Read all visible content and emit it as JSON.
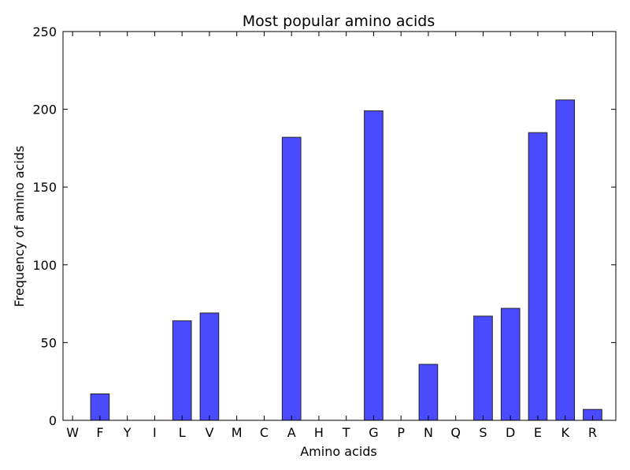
{
  "chart_data": {
    "type": "bar",
    "title": "Most popular amino acids",
    "xlabel": "Amino acids",
    "ylabel": "Frequency of amino acids",
    "categories": [
      "W",
      "F",
      "Y",
      "I",
      "L",
      "V",
      "M",
      "C",
      "A",
      "H",
      "T",
      "G",
      "P",
      "N",
      "Q",
      "S",
      "D",
      "E",
      "K",
      "R"
    ],
    "values": [
      0,
      17,
      0,
      0,
      64,
      69,
      0,
      0,
      182,
      0,
      0,
      199,
      0,
      36,
      0,
      67,
      72,
      185,
      206,
      7
    ],
    "ylim": [
      0,
      250
    ],
    "yticks": [
      "0",
      "50",
      "100",
      "150",
      "200",
      "250"
    ],
    "bar_color": "#4a4aff",
    "grid": false
  }
}
